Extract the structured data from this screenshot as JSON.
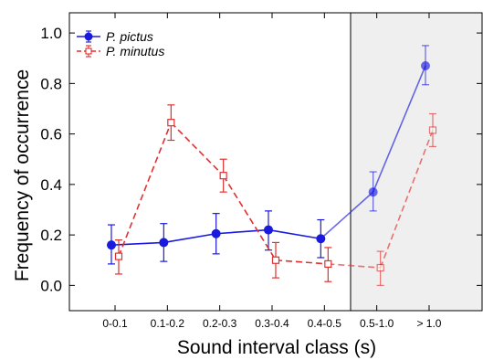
{
  "chart_data": {
    "type": "line",
    "xlabel": "Sound interval class (s)",
    "ylabel": "Frequency of occurrence",
    "categories": [
      "0-0.1",
      "0.1-0.2",
      "0.2-0.3",
      "0.3-0.4",
      "0.4-0.5",
      "0.5-1.0",
      "> 1.0"
    ],
    "ylim": [
      -0.1,
      1.08
    ],
    "yticks": [
      "0.0",
      "0.2",
      "0.4",
      "0.6",
      "0.8",
      "1.0"
    ],
    "shaded_categories": [
      "0.5-1.0",
      "> 1.0"
    ],
    "legend_position": "top-left",
    "series": [
      {
        "name": "P. pictus",
        "color": "#1a1adf",
        "marker": "filled-circle",
        "line_style": "solid",
        "values": [
          0.16,
          0.17,
          0.205,
          0.22,
          0.185,
          0.37,
          0.87
        ],
        "error_low": [
          0.085,
          0.095,
          0.125,
          0.14,
          0.11,
          0.295,
          0.795
        ],
        "error_high": [
          0.24,
          0.245,
          0.285,
          0.295,
          0.26,
          0.45,
          0.95
        ]
      },
      {
        "name": "P. minutus",
        "color": "#e03030",
        "marker": "open-square",
        "line_style": "dashed",
        "values": [
          0.115,
          0.645,
          0.435,
          0.1,
          0.085,
          0.07,
          0.615
        ],
        "error_low": [
          0.045,
          0.575,
          0.37,
          0.03,
          0.015,
          0.0,
          0.55
        ],
        "error_high": [
          0.18,
          0.715,
          0.5,
          0.17,
          0.15,
          0.135,
          0.68
        ]
      }
    ]
  }
}
